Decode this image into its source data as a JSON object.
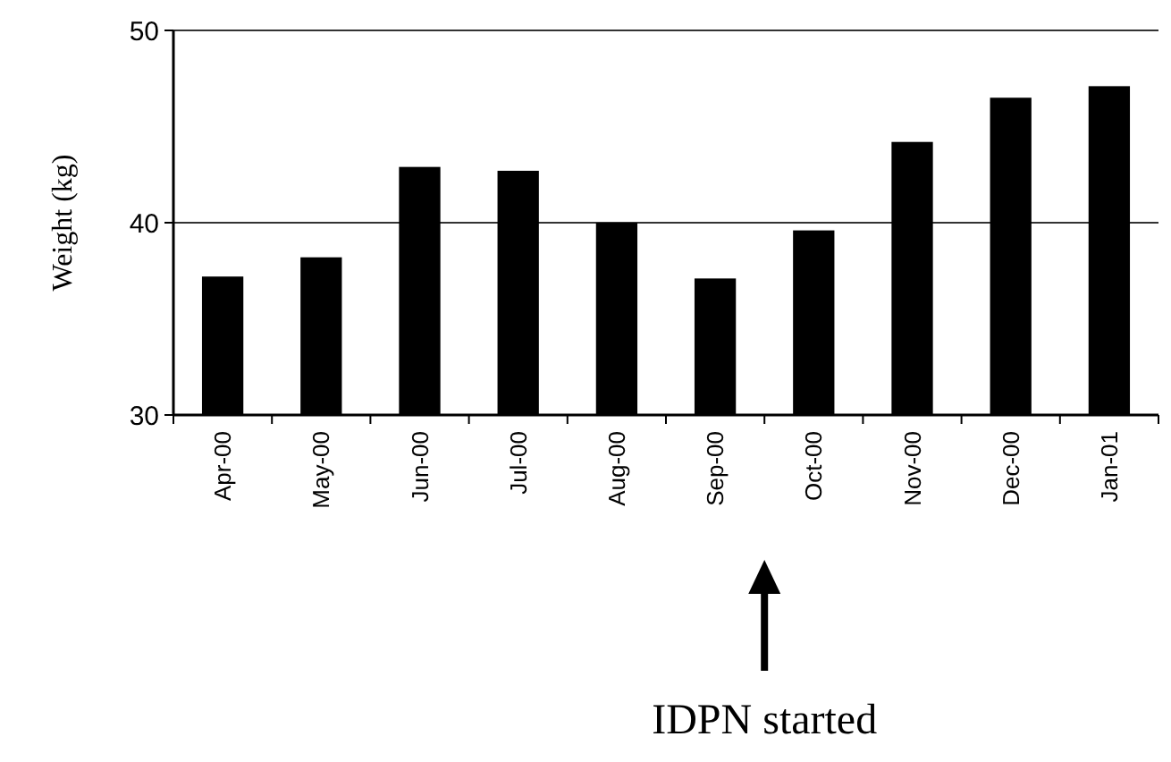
{
  "chart_data": {
    "type": "bar",
    "ylabel": "Weight (kg)",
    "categories": [
      "Apr-00",
      "May-00",
      "Jun-00",
      "Jul-00",
      "Aug-00",
      "Sep-00",
      "Oct-00",
      "Nov-00",
      "Dec-00",
      "Jan-01"
    ],
    "values": [
      37.2,
      38.2,
      42.9,
      42.7,
      40.0,
      37.1,
      39.6,
      44.2,
      46.5,
      47.1
    ],
    "color": "#000000",
    "ylim": [
      30,
      50
    ],
    "yticks": [
      30,
      40,
      50
    ],
    "grid": "y",
    "annotations": [
      "IDPN started"
    ]
  }
}
